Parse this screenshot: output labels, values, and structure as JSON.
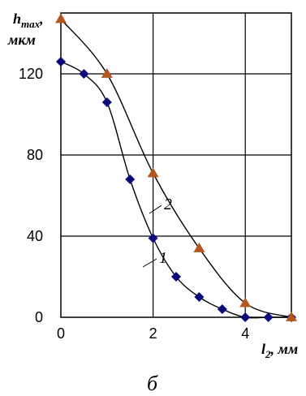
{
  "chart_data": {
    "type": "scatter",
    "ylabel_main": "h",
    "ylabel_sub": "max",
    "ylabel_suffix": ",",
    "yunit": "мкм",
    "xlabel_main": "l",
    "xlabel_sub": "2",
    "xlabel_suffix": ", мм",
    "xlim": [
      0,
      5
    ],
    "ylim": [
      0,
      150
    ],
    "x_ticks": [
      "0",
      "2",
      "4"
    ],
    "x_tick_values": [
      0,
      2,
      4
    ],
    "y_ticks": [
      "0",
      "40",
      "80",
      "120"
    ],
    "y_tick_values": [
      0,
      40,
      80,
      120
    ],
    "grid": true,
    "caption": "б",
    "series": [
      {
        "curve_label": "1",
        "marker": "diamond",
        "color": "#0a0a7a",
        "x": [
          0,
          0.5,
          1.0,
          1.5,
          2.0,
          2.5,
          3.0,
          3.5,
          4.0,
          4.5,
          5.0
        ],
        "values": [
          126,
          120,
          106,
          68,
          39,
          20,
          10,
          4,
          0,
          0,
          0
        ]
      },
      {
        "curve_label": "2",
        "marker": "triangle",
        "color": "#b4561e",
        "x": [
          0,
          1.0,
          2.0,
          3.0,
          4.0,
          5.0
        ],
        "values": [
          147,
          120,
          71,
          34,
          7,
          0
        ]
      }
    ]
  }
}
